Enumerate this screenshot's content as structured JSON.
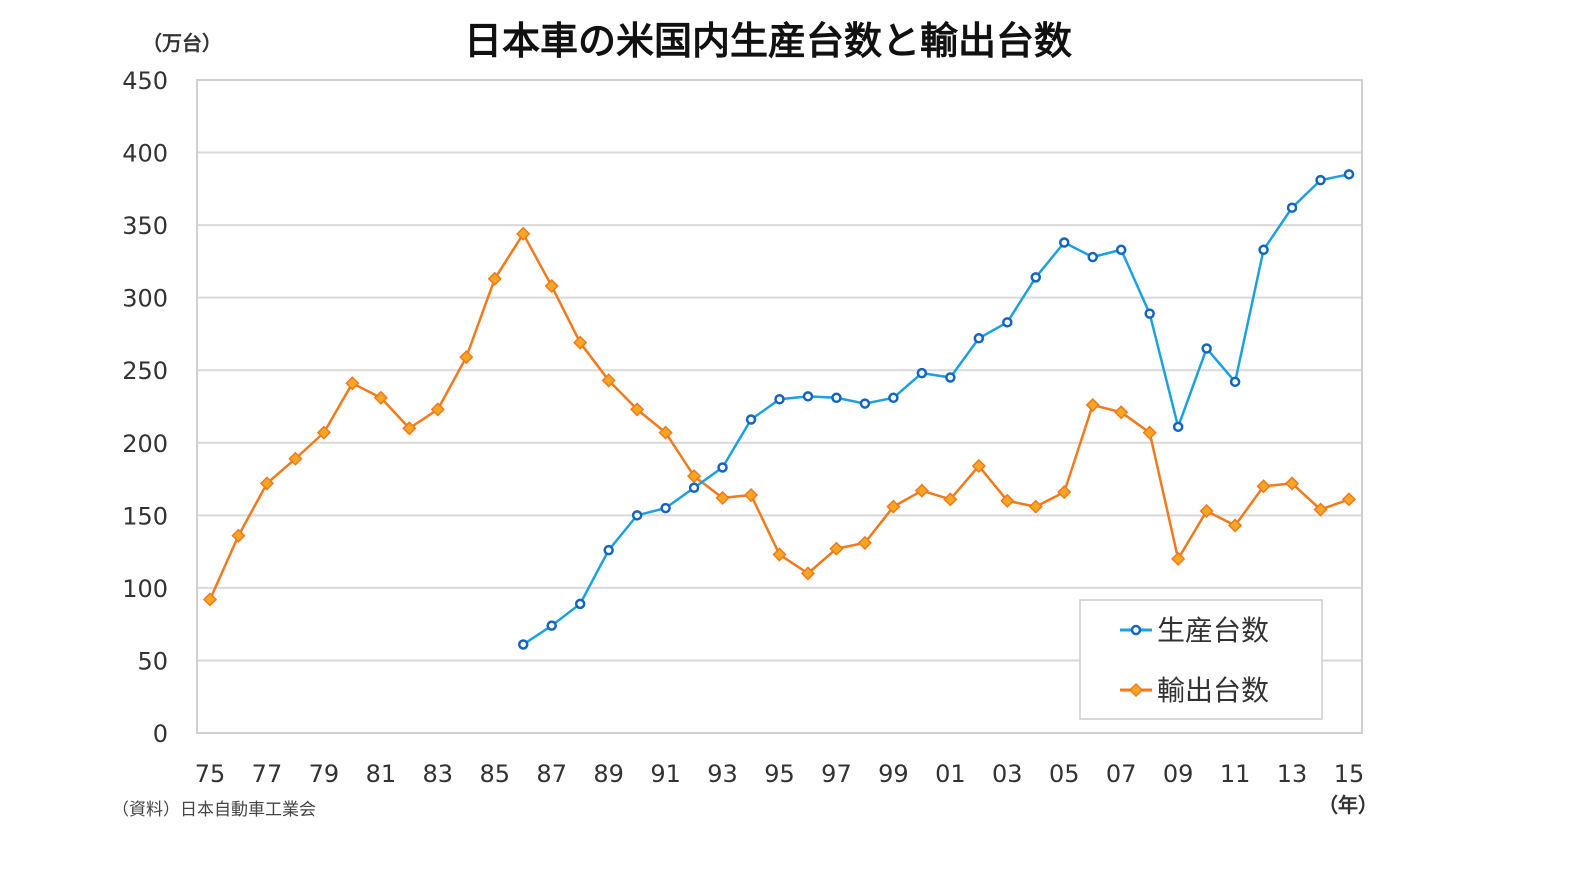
{
  "chart_data": {
    "type": "line",
    "title": "日本車の米国内生産台数と輸出台数",
    "ylabel": "（万台）",
    "xlabel": "（年）",
    "source": "（資料）日本自動車工業会",
    "ylim": [
      0,
      450
    ],
    "yticks": [
      0,
      50,
      100,
      150,
      200,
      250,
      300,
      350,
      400,
      450
    ],
    "xlim": [
      1975,
      2015
    ],
    "xtick_years": [
      1975,
      1977,
      1979,
      1981,
      1983,
      1985,
      1987,
      1989,
      1991,
      1993,
      1995,
      1997,
      1999,
      2001,
      2003,
      2005,
      2007,
      2009,
      2011,
      2013,
      2015
    ],
    "xtick_labels": [
      "75",
      "77",
      "79",
      "81",
      "83",
      "85",
      "87",
      "89",
      "91",
      "93",
      "95",
      "97",
      "99",
      "01",
      "03",
      "05",
      "07",
      "09",
      "11",
      "13",
      "15"
    ],
    "grid": true,
    "legend_position": "bottom-right",
    "series": [
      {
        "name": "生産台数",
        "color": "#1ba1e2",
        "marker_color": "#1565c0",
        "marker": "circle",
        "x": [
          1986,
          1987,
          1988,
          1989,
          1990,
          1991,
          1992,
          1993,
          1994,
          1995,
          1996,
          1997,
          1998,
          1999,
          2000,
          2001,
          2002,
          2003,
          2004,
          2005,
          2006,
          2007,
          2008,
          2009,
          2010,
          2011,
          2012,
          2013,
          2014,
          2015
        ],
        "values": [
          61,
          74,
          89,
          126,
          150,
          155,
          169,
          183,
          216,
          230,
          232,
          231,
          227,
          231,
          248,
          245,
          272,
          283,
          314,
          338,
          328,
          333,
          289,
          211,
          265,
          242,
          333,
          362,
          381,
          385
        ]
      },
      {
        "name": "輸出台数",
        "color": "#f07a1c",
        "marker_color": "#f5a623",
        "marker": "diamond",
        "x": [
          1975,
          1976,
          1977,
          1978,
          1979,
          1980,
          1981,
          1982,
          1983,
          1984,
          1985,
          1986,
          1987,
          1988,
          1989,
          1990,
          1991,
          1992,
          1993,
          1994,
          1995,
          1996,
          1997,
          1998,
          1999,
          2000,
          2001,
          2002,
          2003,
          2004,
          2005,
          2006,
          2007,
          2008,
          2009,
          2010,
          2011,
          2012,
          2013,
          2014,
          2015
        ],
        "values": [
          92,
          136,
          172,
          189,
          207,
          241,
          231,
          210,
          223,
          259,
          313,
          344,
          308,
          269,
          243,
          223,
          207,
          177,
          162,
          164,
          123,
          110,
          127,
          131,
          156,
          167,
          161,
          184,
          160,
          156,
          166,
          226,
          221,
          207,
          120,
          153,
          143,
          170,
          172,
          154,
          161
        ]
      }
    ]
  }
}
